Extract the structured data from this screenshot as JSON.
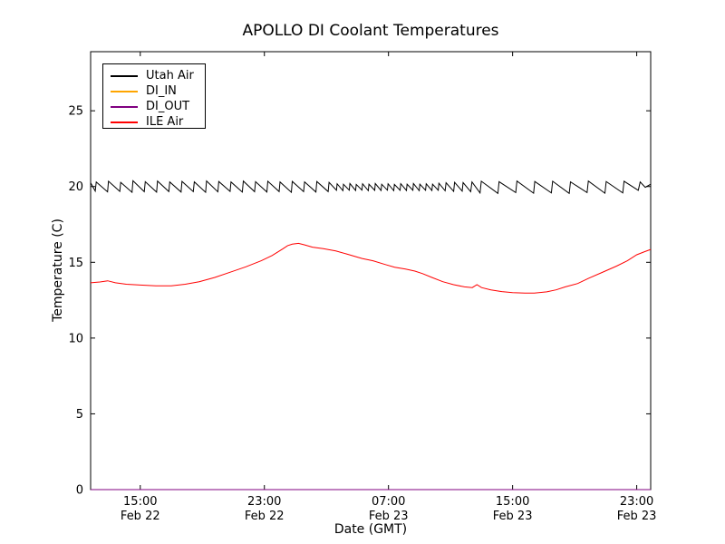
{
  "chart_data": {
    "type": "line",
    "title": "APOLLO DI Coolant Temperatures",
    "xlabel": "Date (GMT)",
    "ylabel": "Temperature (C)",
    "grid": false,
    "legend_position": "upper left",
    "x_axis": {
      "unit": "hours from plot start",
      "range": [
        0,
        36.1
      ],
      "ticks": [
        {
          "pos": 3.2,
          "time": "15:00",
          "date": "Feb 22"
        },
        {
          "pos": 11.2,
          "time": "23:00",
          "date": "Feb 22"
        },
        {
          "pos": 19.2,
          "time": "07:00",
          "date": "Feb 23"
        },
        {
          "pos": 27.2,
          "time": "15:00",
          "date": "Feb 23"
        },
        {
          "pos": 35.2,
          "time": "23:00",
          "date": "Feb 23"
        }
      ]
    },
    "y_axis": {
      "range": [
        0,
        28.9
      ],
      "ticks": [
        0,
        5,
        10,
        15,
        20,
        25
      ]
    },
    "series": [
      {
        "name": "Utah Air",
        "color": "#000000",
        "points": [
          [
            0,
            20.25
          ],
          [
            0.3,
            19.7
          ],
          [
            0.36,
            20.3
          ],
          [
            1.09,
            19.65
          ],
          [
            1.15,
            20.35
          ],
          [
            1.88,
            19.68
          ],
          [
            1.94,
            20.28
          ],
          [
            2.67,
            19.62
          ],
          [
            2.73,
            20.38
          ],
          [
            3.46,
            19.66
          ],
          [
            3.52,
            20.32
          ],
          [
            4.25,
            19.63
          ],
          [
            4.31,
            20.36
          ],
          [
            5.04,
            19.67
          ],
          [
            5.1,
            20.3
          ],
          [
            5.83,
            19.64
          ],
          [
            5.89,
            20.34
          ],
          [
            6.62,
            19.66
          ],
          [
            6.68,
            20.31
          ],
          [
            7.41,
            19.62
          ],
          [
            7.47,
            20.37
          ],
          [
            8.2,
            19.65
          ],
          [
            8.26,
            20.33
          ],
          [
            8.99,
            19.68
          ],
          [
            9.05,
            20.3
          ],
          [
            9.78,
            19.63
          ],
          [
            9.84,
            20.36
          ],
          [
            10.57,
            19.66
          ],
          [
            10.63,
            20.32
          ],
          [
            11.36,
            19.64
          ],
          [
            11.42,
            20.35
          ],
          [
            12.15,
            19.67
          ],
          [
            12.21,
            20.3
          ],
          [
            12.94,
            19.62
          ],
          [
            13.0,
            20.34
          ],
          [
            13.73,
            19.66
          ],
          [
            13.79,
            20.31
          ],
          [
            14.52,
            19.64
          ],
          [
            14.58,
            20.33
          ],
          [
            15.31,
            19.67
          ],
          [
            15.37,
            20.28
          ],
          [
            15.85,
            19.75
          ],
          [
            15.89,
            20.18
          ],
          [
            16.26,
            19.73
          ],
          [
            16.3,
            20.15
          ],
          [
            16.67,
            19.76
          ],
          [
            16.71,
            20.2
          ],
          [
            17.08,
            19.74
          ],
          [
            17.12,
            20.14
          ],
          [
            17.49,
            19.77
          ],
          [
            17.53,
            20.18
          ],
          [
            17.9,
            19.73
          ],
          [
            17.94,
            20.16
          ],
          [
            18.31,
            19.75
          ],
          [
            18.35,
            20.2
          ],
          [
            18.72,
            19.74
          ],
          [
            18.76,
            20.15
          ],
          [
            19.13,
            19.76
          ],
          [
            19.17,
            20.18
          ],
          [
            19.54,
            19.73
          ],
          [
            19.58,
            20.14
          ],
          [
            19.95,
            19.75
          ],
          [
            19.99,
            20.19
          ],
          [
            20.36,
            19.74
          ],
          [
            20.4,
            20.16
          ],
          [
            20.77,
            19.76
          ],
          [
            20.81,
            20.2
          ],
          [
            21.18,
            19.73
          ],
          [
            21.22,
            20.15
          ],
          [
            21.59,
            19.75
          ],
          [
            21.63,
            20.18
          ],
          [
            22.0,
            19.74
          ],
          [
            22.04,
            20.16
          ],
          [
            22.41,
            19.76
          ],
          [
            22.45,
            20.22
          ],
          [
            22.85,
            19.72
          ],
          [
            22.91,
            20.25
          ],
          [
            23.4,
            19.68
          ],
          [
            23.46,
            20.28
          ],
          [
            23.95,
            19.7
          ],
          [
            24.01,
            20.26
          ],
          [
            24.5,
            19.66
          ],
          [
            24.58,
            20.3
          ],
          [
            25.1,
            19.58
          ],
          [
            25.18,
            20.35
          ],
          [
            26.25,
            19.55
          ],
          [
            26.33,
            20.32
          ],
          [
            27.4,
            19.6
          ],
          [
            27.48,
            20.36
          ],
          [
            28.55,
            19.56
          ],
          [
            28.63,
            20.33
          ],
          [
            29.7,
            19.58
          ],
          [
            29.78,
            20.35
          ],
          [
            30.85,
            19.55
          ],
          [
            30.93,
            20.31
          ],
          [
            32.0,
            19.6
          ],
          [
            32.08,
            20.36
          ],
          [
            33.15,
            19.56
          ],
          [
            33.23,
            20.33
          ],
          [
            34.3,
            19.58
          ],
          [
            34.38,
            20.35
          ],
          [
            35.3,
            19.75
          ],
          [
            35.42,
            20.3
          ],
          [
            35.75,
            19.95
          ],
          [
            36.1,
            20.15
          ]
        ]
      },
      {
        "name": "DI_IN",
        "color": "#ffa500",
        "points": [
          [
            0,
            0
          ],
          [
            36.1,
            0
          ]
        ]
      },
      {
        "name": "DI_OUT",
        "color": "#800080",
        "points": [
          [
            0,
            0
          ],
          [
            36.1,
            0
          ]
        ]
      },
      {
        "name": "ILE Air",
        "color": "#ff0000",
        "points": [
          [
            0,
            13.65
          ],
          [
            0.6,
            13.7
          ],
          [
            1.1,
            13.78
          ],
          [
            1.6,
            13.65
          ],
          [
            2.3,
            13.55
          ],
          [
            3.2,
            13.5
          ],
          [
            4.2,
            13.45
          ],
          [
            5.2,
            13.45
          ],
          [
            6.1,
            13.55
          ],
          [
            7.0,
            13.72
          ],
          [
            8.0,
            14.0
          ],
          [
            9.0,
            14.35
          ],
          [
            10.0,
            14.7
          ],
          [
            11.0,
            15.1
          ],
          [
            11.7,
            15.45
          ],
          [
            12.1,
            15.7
          ],
          [
            12.4,
            15.9
          ],
          [
            12.7,
            16.1
          ],
          [
            13.0,
            16.2
          ],
          [
            13.4,
            16.25
          ],
          [
            13.8,
            16.15
          ],
          [
            14.3,
            16.0
          ],
          [
            15.0,
            15.9
          ],
          [
            15.8,
            15.75
          ],
          [
            16.5,
            15.55
          ],
          [
            17.0,
            15.4
          ],
          [
            17.5,
            15.25
          ],
          [
            18.2,
            15.1
          ],
          [
            19.0,
            14.85
          ],
          [
            19.6,
            14.68
          ],
          [
            20.3,
            14.55
          ],
          [
            20.9,
            14.42
          ],
          [
            21.4,
            14.25
          ],
          [
            22.0,
            14.0
          ],
          [
            22.7,
            13.72
          ],
          [
            23.4,
            13.52
          ],
          [
            24.1,
            13.38
          ],
          [
            24.6,
            13.33
          ],
          [
            24.9,
            13.52
          ],
          [
            25.2,
            13.33
          ],
          [
            25.8,
            13.18
          ],
          [
            26.5,
            13.07
          ],
          [
            27.2,
            13.0
          ],
          [
            28.0,
            12.97
          ],
          [
            28.6,
            12.97
          ],
          [
            29.4,
            13.05
          ],
          [
            30.0,
            13.18
          ],
          [
            30.6,
            13.38
          ],
          [
            31.4,
            13.6
          ],
          [
            32.1,
            13.95
          ],
          [
            32.9,
            14.3
          ],
          [
            33.9,
            14.75
          ],
          [
            34.6,
            15.1
          ],
          [
            35.2,
            15.5
          ],
          [
            35.7,
            15.7
          ],
          [
            36.1,
            15.85
          ]
        ]
      }
    ]
  }
}
